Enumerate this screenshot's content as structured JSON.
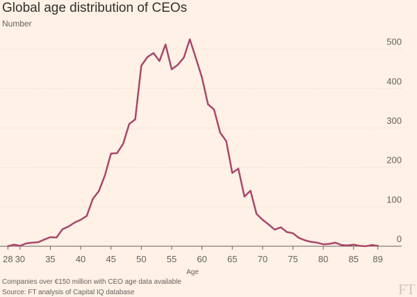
{
  "chart_data": {
    "type": "line",
    "title": "Global age distribution of CEOs",
    "subtitle": "Number",
    "xlabel": "Age",
    "ylabel": "Number",
    "xlim": [
      27.5,
      89.5
    ],
    "ylim": [
      0,
      540
    ],
    "yticks": [
      0,
      100,
      200,
      300,
      400,
      500
    ],
    "xticks": [
      28,
      30,
      35,
      40,
      45,
      50,
      55,
      60,
      65,
      70,
      75,
      80,
      85,
      89
    ],
    "grid": true,
    "legend": "none",
    "line_color": "#a8466b",
    "series": [
      {
        "x": [
          28,
          29,
          30,
          31,
          32,
          33,
          34,
          35,
          36,
          37,
          38,
          39,
          40,
          41,
          42,
          43,
          44,
          45,
          46,
          47,
          48,
          49,
          50,
          51,
          52,
          53,
          54,
          55,
          56,
          57,
          58,
          59,
          60,
          61,
          62,
          63,
          64,
          65,
          66,
          67,
          68,
          69,
          70,
          71,
          72,
          73,
          74,
          75,
          76,
          77,
          78,
          79,
          80,
          81,
          82,
          83,
          84,
          85,
          86,
          87,
          88,
          89
        ],
        "values": [
          0,
          4,
          1,
          7,
          9,
          10,
          17,
          23,
          22,
          43,
          50,
          60,
          67,
          77,
          120,
          140,
          180,
          235,
          236,
          260,
          310,
          322,
          458,
          480,
          490,
          470,
          512,
          449,
          460,
          478,
          525,
          477,
          428,
          360,
          347,
          288,
          267,
          186,
          197,
          126,
          141,
          82,
          67,
          55,
          42,
          48,
          36,
          33,
          21,
          15,
          11,
          9,
          5,
          6,
          9,
          3,
          2,
          4,
          1,
          0,
          3,
          1
        ]
      }
    ],
    "footnotes": [
      "Companies over €150 million with CEO age data available",
      "Source: FT analysis of Capital IQ database"
    ],
    "logo": "FT"
  }
}
